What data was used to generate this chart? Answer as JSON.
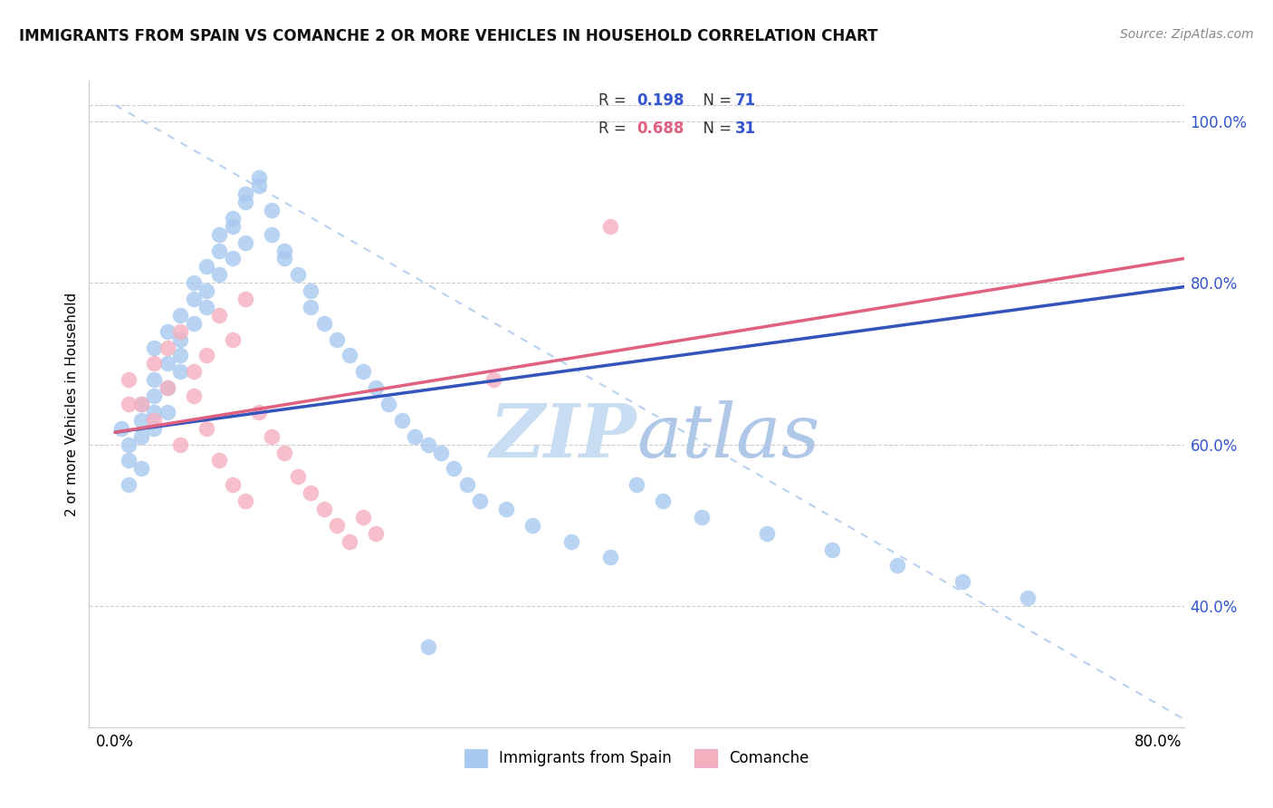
{
  "title": "IMMIGRANTS FROM SPAIN VS COMANCHE 2 OR MORE VEHICLES IN HOUSEHOLD CORRELATION CHART",
  "source": "Source: ZipAtlas.com",
  "ylabel": "2 or more Vehicles in Household",
  "xlim": [
    -0.002,
    0.082
  ],
  "ylim": [
    0.25,
    1.05
  ],
  "yticks_right": [
    0.4,
    0.6,
    0.8,
    1.0
  ],
  "ytick_labels_right": [
    "40.0%",
    "60.0%",
    "80.0%",
    "100.0%"
  ],
  "xticks": [
    0.0,
    0.01,
    0.02,
    0.03,
    0.04,
    0.05,
    0.06,
    0.07,
    0.08
  ],
  "xtick_labels": [
    "0.0%",
    "",
    "",
    "",
    "",
    "",
    "",
    "",
    "80.0%"
  ],
  "blue_color": "#A8C8F0",
  "pink_color": "#F5B0C0",
  "trend_blue": "#3355BB",
  "trend_pink": "#E06080",
  "dash_color": "#B8D0F0",
  "watermark_color": "#D5E8F8",
  "blue_r": "0.198",
  "blue_n": "71",
  "pink_r": "0.688",
  "pink_n": "31",
  "blue_scatter_x": [
    0.0005,
    0.001,
    0.001,
    0.002,
    0.002,
    0.002,
    0.003,
    0.003,
    0.003,
    0.003,
    0.004,
    0.004,
    0.004,
    0.005,
    0.005,
    0.005,
    0.005,
    0.006,
    0.006,
    0.006,
    0.007,
    0.007,
    0.007,
    0.008,
    0.008,
    0.008,
    0.009,
    0.009,
    0.009,
    0.01,
    0.01,
    0.01,
    0.011,
    0.011,
    0.012,
    0.012,
    0.013,
    0.013,
    0.014,
    0.015,
    0.015,
    0.016,
    0.017,
    0.018,
    0.019,
    0.02,
    0.021,
    0.022,
    0.023,
    0.024,
    0.025,
    0.026,
    0.027,
    0.028,
    0.03,
    0.032,
    0.035,
    0.038,
    0.04,
    0.042,
    0.045,
    0.05,
    0.055,
    0.06,
    0.065,
    0.07,
    0.001,
    0.002,
    0.003,
    0.004,
    0.024
  ],
  "blue_scatter_y": [
    0.62,
    0.6,
    0.58,
    0.65,
    0.63,
    0.61,
    0.68,
    0.66,
    0.64,
    0.72,
    0.7,
    0.67,
    0.74,
    0.76,
    0.73,
    0.71,
    0.69,
    0.78,
    0.75,
    0.8,
    0.82,
    0.79,
    0.77,
    0.84,
    0.81,
    0.86,
    0.83,
    0.87,
    0.88,
    0.9,
    0.85,
    0.91,
    0.93,
    0.92,
    0.89,
    0.86,
    0.84,
    0.83,
    0.81,
    0.79,
    0.77,
    0.75,
    0.73,
    0.71,
    0.69,
    0.67,
    0.65,
    0.63,
    0.61,
    0.6,
    0.59,
    0.57,
    0.55,
    0.53,
    0.52,
    0.5,
    0.48,
    0.46,
    0.55,
    0.53,
    0.51,
    0.49,
    0.47,
    0.45,
    0.43,
    0.41,
    0.55,
    0.57,
    0.62,
    0.64,
    0.35
  ],
  "pink_scatter_x": [
    0.001,
    0.002,
    0.003,
    0.003,
    0.004,
    0.004,
    0.005,
    0.005,
    0.006,
    0.006,
    0.007,
    0.007,
    0.008,
    0.008,
    0.009,
    0.009,
    0.01,
    0.01,
    0.011,
    0.012,
    0.013,
    0.014,
    0.015,
    0.016,
    0.017,
    0.018,
    0.019,
    0.02,
    0.038,
    0.001,
    0.029
  ],
  "pink_scatter_y": [
    0.68,
    0.65,
    0.7,
    0.63,
    0.72,
    0.67,
    0.74,
    0.6,
    0.66,
    0.69,
    0.71,
    0.62,
    0.76,
    0.58,
    0.73,
    0.55,
    0.78,
    0.53,
    0.64,
    0.61,
    0.59,
    0.56,
    0.54,
    0.52,
    0.5,
    0.48,
    0.51,
    0.49,
    0.87,
    0.65,
    0.68
  ],
  "blue_line_x0": 0.0,
  "blue_line_x1": 0.082,
  "blue_line_y0": 0.615,
  "blue_line_y1": 0.795,
  "pink_line_x0": 0.0,
  "pink_line_x1": 0.082,
  "pink_line_y0": 0.615,
  "pink_line_y1": 0.83,
  "dash_line_x0": 0.0,
  "dash_line_x1": 0.082,
  "dash_line_y0": 1.02,
  "dash_line_y1": 0.26
}
